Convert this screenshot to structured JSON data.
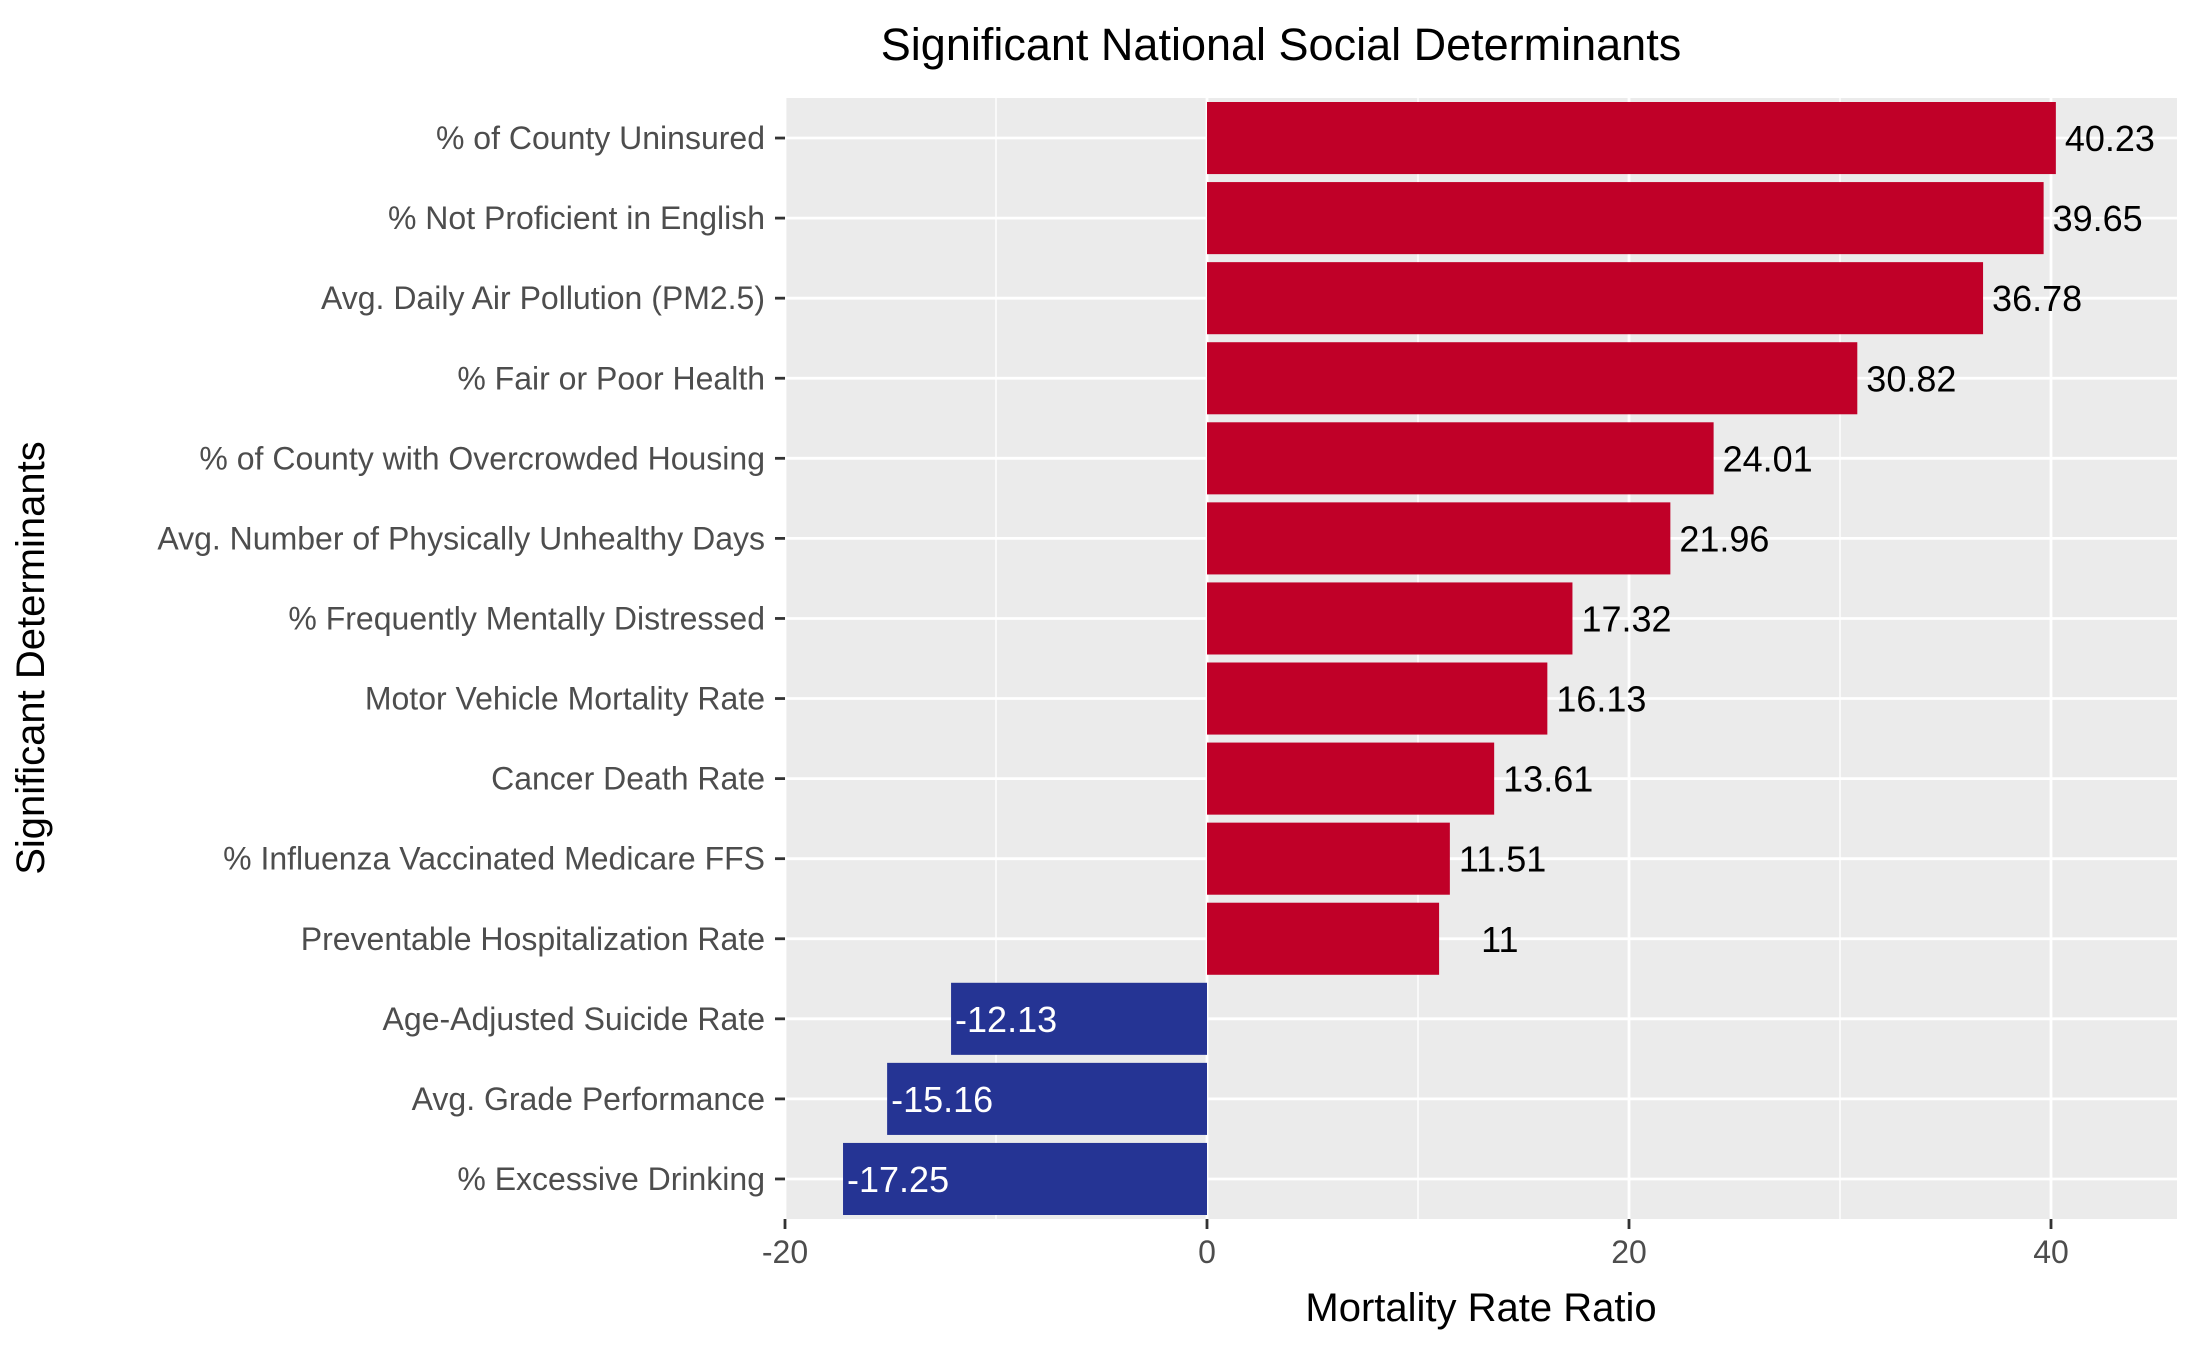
{
  "chart_data": {
    "type": "bar",
    "orientation": "horizontal",
    "title": "Significant National Social Determinants",
    "xlabel": "Mortality Rate Ratio",
    "ylabel": "Significant Determinants",
    "xlim": [
      -20,
      46
    ],
    "x_ticks": [
      -20,
      0,
      20,
      40
    ],
    "grid": true,
    "legend": "none",
    "categories": [
      "% of County Uninsured",
      "% Not Proficient in English",
      "Avg. Daily Air Pollution (PM2.5)",
      "% Fair or Poor Health",
      "% of County with Overcrowded Housing",
      "Avg. Number of Physically Unhealthy Days",
      "% Frequently Mentally Distressed",
      "Motor Vehicle Mortality Rate",
      "Cancer Death Rate",
      "% Influenza Vaccinated Medicare FFS",
      "Preventable Hospitalization Rate",
      "Age-Adjusted Suicide Rate",
      "Avg. Grade Performance",
      "% Excessive Drinking"
    ],
    "values": [
      40.23,
      39.65,
      36.78,
      30.82,
      24.01,
      21.96,
      17.32,
      16.13,
      13.61,
      11.51,
      11,
      -12.13,
      -15.16,
      -17.25
    ],
    "data_labels": [
      "40.23",
      "39.65",
      "36.78",
      "30.82",
      "24.01",
      "21.96",
      "17.32",
      "16.13",
      "13.61",
      "11.51",
      "11",
      "-12.13",
      "-15.16",
      "-17.25"
    ],
    "colors": {
      "positive": "#c00028",
      "negative": "#253494",
      "panel": "#ebebeb",
      "grid": "#ffffff",
      "positive_label": "#000000",
      "negative_label": "#ffffff"
    }
  }
}
